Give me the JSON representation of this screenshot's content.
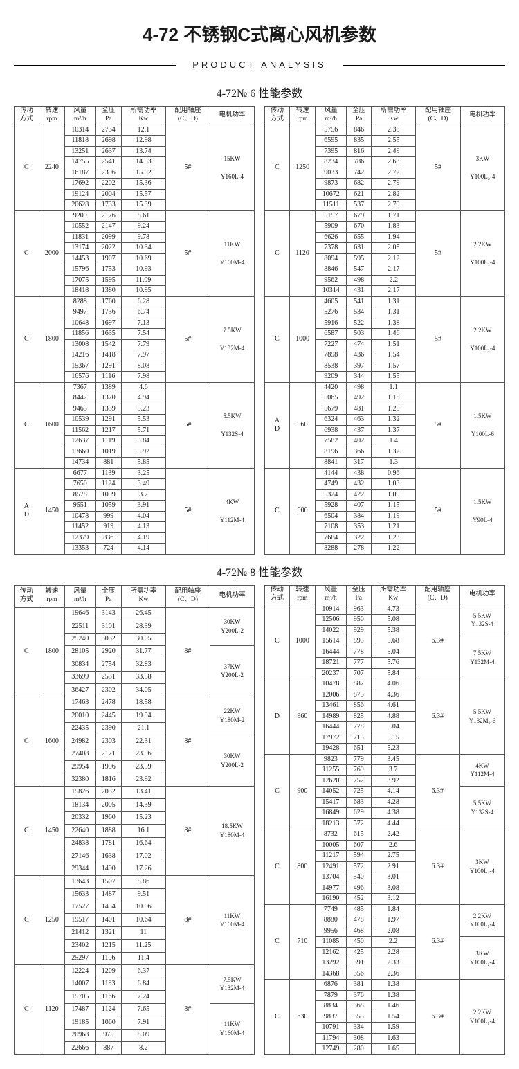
{
  "title": "4-72 不锈钢C式离心风机参数",
  "subtitle": "PRODUCT ANALYSIS",
  "sections": [
    {
      "heading": "4-72№ 6 性能参数"
    },
    {
      "heading": "4-72№ 8 性能参数"
    }
  ],
  "headers": {
    "drive": "传动\n方式",
    "rpm": "转速\nrpm",
    "flow": "风量\nm³/h",
    "press": "全压\nPa",
    "power": "所需功率\nKw",
    "bearing": "配用轴座\n(C、D)",
    "motor": "电机功率"
  },
  "colors": {
    "border": "#555555",
    "text": "#1a1a1a",
    "bg": "#ffffff"
  },
  "no6_left": [
    {
      "drive": "C",
      "rpm": "2240",
      "bearing": "5#",
      "motor": [
        "15KW",
        "Y160L-4"
      ],
      "rows": [
        [
          "10314",
          "2734",
          "12.1"
        ],
        [
          "11818",
          "2698",
          "12.98"
        ],
        [
          "13251",
          "2637",
          "13.74"
        ],
        [
          "14755",
          "2541",
          "14.53"
        ],
        [
          "16187",
          "2396",
          "15.02"
        ],
        [
          "17692",
          "2202",
          "15.36"
        ],
        [
          "19124",
          "2004",
          "15.57"
        ],
        [
          "20628",
          "1733",
          "15.39"
        ]
      ]
    },
    {
      "drive": "C",
      "rpm": "2000",
      "bearing": "5#",
      "motor": [
        "11KW",
        "Y160M-4"
      ],
      "rows": [
        [
          "9209",
          "2176",
          "8.61"
        ],
        [
          "10552",
          "2147",
          "9.24"
        ],
        [
          "11831",
          "2099",
          "9.78"
        ],
        [
          "13174",
          "2022",
          "10.34"
        ],
        [
          "14453",
          "1907",
          "10.69"
        ],
        [
          "15796",
          "1753",
          "10.93"
        ],
        [
          "17075",
          "1595",
          "11.09"
        ],
        [
          "18418",
          "1380",
          "10.95"
        ]
      ]
    },
    {
      "drive": "C",
      "rpm": "1800",
      "bearing": "5#",
      "motor": [
        "7.5KW",
        "Y132M-4"
      ],
      "rows": [
        [
          "8288",
          "1760",
          "6.28"
        ],
        [
          "9497",
          "1736",
          "6.74"
        ],
        [
          "10648",
          "1697",
          "7.13"
        ],
        [
          "11856",
          "1635",
          "7.54"
        ],
        [
          "13008",
          "1542",
          "7.79"
        ],
        [
          "14216",
          "1418",
          "7.97"
        ],
        [
          "15367",
          "1291",
          "8.08"
        ],
        [
          "16576",
          "1116",
          "7.98"
        ]
      ]
    },
    {
      "drive": "C",
      "rpm": "1600",
      "bearing": "5#",
      "motor": [
        "5.5KW",
        "Y132S-4"
      ],
      "rows": [
        [
          "7367",
          "1389",
          "4.6"
        ],
        [
          "8442",
          "1370",
          "4.94"
        ],
        [
          "9465",
          "1339",
          "5.23"
        ],
        [
          "10539",
          "1291",
          "5.53"
        ],
        [
          "11562",
          "1217",
          "5.71"
        ],
        [
          "12637",
          "1119",
          "5.84"
        ],
        [
          "13660",
          "1019",
          "5.92"
        ],
        [
          "14734",
          "881",
          "5.85"
        ]
      ]
    },
    {
      "drive": "A\nD",
      "rpm": "1450",
      "bearing": "5#",
      "motor": [
        "4KW",
        "Y112M-4"
      ],
      "rows": [
        [
          "6677",
          "1139",
          "3.25"
        ],
        [
          "7650",
          "1124",
          "3.49"
        ],
        [
          "8578",
          "1099",
          "3.7"
        ],
        [
          "9551",
          "1059",
          "3.91"
        ],
        [
          "10478",
          "999",
          "4.04"
        ],
        [
          "11452",
          "919",
          "4.13"
        ],
        [
          "12379",
          "836",
          "4.19"
        ],
        [
          "13353",
          "724",
          "4.14"
        ]
      ]
    }
  ],
  "no6_right": [
    {
      "drive": "C",
      "rpm": "1250",
      "bearing": "5#",
      "motor": [
        "3KW",
        "Y100L₂-4"
      ],
      "rows": [
        [
          "5756",
          "846",
          "2.38"
        ],
        [
          "6595",
          "835",
          "2.55"
        ],
        [
          "7395",
          "816",
          "2.49"
        ],
        [
          "8234",
          "786",
          "2.63"
        ],
        [
          "9033",
          "742",
          "2.72"
        ],
        [
          "9873",
          "682",
          "2.79"
        ],
        [
          "10672",
          "621",
          "2.82"
        ],
        [
          "11511",
          "537",
          "2.79"
        ]
      ]
    },
    {
      "drive": "C",
      "rpm": "1120",
      "bearing": "5#",
      "motor": [
        "2.2KW",
        "Y100L₁-4"
      ],
      "rows": [
        [
          "5157",
          "679",
          "1.71"
        ],
        [
          "5909",
          "670",
          "1.83"
        ],
        [
          "6626",
          "655",
          "1.94"
        ],
        [
          "7378",
          "631",
          "2.05"
        ],
        [
          "8094",
          "595",
          "2.12"
        ],
        [
          "8846",
          "547",
          "2.17"
        ],
        [
          "9562",
          "498",
          "2.2"
        ],
        [
          "10314",
          "431",
          "2.17"
        ]
      ]
    },
    {
      "drive": "C",
      "rpm": "1000",
      "bearing": "5#",
      "motor": [
        "2.2KW",
        "Y100L₁-4"
      ],
      "rows": [
        [
          "4605",
          "541",
          "1.31"
        ],
        [
          "5276",
          "534",
          "1.31"
        ],
        [
          "5916",
          "522",
          "1.38"
        ],
        [
          "6587",
          "503",
          "1.46"
        ],
        [
          "7227",
          "474",
          "1.51"
        ],
        [
          "7898",
          "436",
          "1.54"
        ],
        [
          "8538",
          "397",
          "1.57"
        ],
        [
          "9209",
          "344",
          "1.55"
        ]
      ]
    },
    {
      "drive": "A\nD",
      "rpm": "960",
      "bearing": "5#",
      "motor": [
        "1.5KW",
        "Y100L-6"
      ],
      "rows": [
        [
          "4420",
          "498",
          "1.1"
        ],
        [
          "5065",
          "492",
          "1.18"
        ],
        [
          "5679",
          "481",
          "1.25"
        ],
        [
          "6324",
          "463",
          "1.32"
        ],
        [
          "6938",
          "437",
          "1.37"
        ],
        [
          "7582",
          "402",
          "1.4"
        ],
        [
          "8196",
          "366",
          "1.32"
        ],
        [
          "8841",
          "317",
          "1.3"
        ]
      ]
    },
    {
      "drive": "C",
      "rpm": "900",
      "bearing": "5#",
      "motor": [
        "1.5KW",
        "Y90L-4"
      ],
      "rows": [
        [
          "4144",
          "438",
          "0.96"
        ],
        [
          "4749",
          "432",
          "1.03"
        ],
        [
          "5324",
          "422",
          "1.09"
        ],
        [
          "5928",
          "407",
          "1.15"
        ],
        [
          "6504",
          "384",
          "1.19"
        ],
        [
          "7108",
          "353",
          "1.21"
        ],
        [
          "7684",
          "322",
          "1.23"
        ],
        [
          "8288",
          "278",
          "1.22"
        ]
      ]
    }
  ],
  "no8_left": [
    {
      "drive": "C",
      "rpm": "1800",
      "bearing": "8#",
      "motors": [
        [
          "30KW",
          "Y200L-2",
          3
        ],
        [
          "37KW",
          "Y200L-2",
          4
        ]
      ],
      "rows": [
        [
          "19646",
          "3143",
          "26.45"
        ],
        [
          "22511",
          "3101",
          "28.39"
        ],
        [
          "25240",
          "3032",
          "30.05"
        ],
        [
          "28105",
          "2920",
          "31.77"
        ],
        [
          "30834",
          "2754",
          "32.83"
        ],
        [
          "33699",
          "2531",
          "33.58"
        ],
        [
          "36427",
          "2302",
          "34.05"
        ]
      ]
    },
    {
      "drive": "C",
      "rpm": "1600",
      "bearing": "8#",
      "motors": [
        [
          "22KW",
          "Y180M-2",
          3
        ],
        [
          "30KW",
          "Y200L-2",
          4
        ]
      ],
      "rows": [
        [
          "17463",
          "2478",
          "18.58"
        ],
        [
          "20010",
          "2445",
          "19.94"
        ],
        [
          "22435",
          "2390",
          "21.1"
        ],
        [
          "24982",
          "2303",
          "22.31"
        ],
        [
          "27408",
          "2171",
          "23.06"
        ],
        [
          "29954",
          "1996",
          "23.59"
        ],
        [
          "32380",
          "1816",
          "23.92"
        ]
      ]
    },
    {
      "drive": "C",
      "rpm": "1450",
      "bearing": "8#",
      "motors": [
        [
          "18.5KW",
          "Y180M-4",
          7
        ]
      ],
      "rows": [
        [
          "15826",
          "2032",
          "13.41"
        ],
        [
          "18134",
          "2005",
          "14.39"
        ],
        [
          "20332",
          "1960",
          "15.23"
        ],
        [
          "22640",
          "1888",
          "16.1"
        ],
        [
          "24838",
          "1781",
          "16.64"
        ],
        [
          "27146",
          "1638",
          "17.02"
        ],
        [
          "29344",
          "1490",
          "17.26"
        ]
      ]
    },
    {
      "drive": "C",
      "rpm": "1250",
      "bearing": "8#",
      "motors": [
        [
          "11KW",
          "Y160M-4",
          7
        ]
      ],
      "rows": [
        [
          "13643",
          "1507",
          "8.86"
        ],
        [
          "15633",
          "1487",
          "9.51"
        ],
        [
          "17527",
          "1454",
          "10.06"
        ],
        [
          "19517",
          "1401",
          "10.64"
        ],
        [
          "21412",
          "1321",
          "11"
        ],
        [
          "23402",
          "1215",
          "11.25"
        ],
        [
          "25297",
          "1106",
          "11.4"
        ]
      ]
    },
    {
      "drive": "C",
      "rpm": "1120",
      "bearing": "8#",
      "motors": [
        [
          "7.5KW",
          "Y132M-4",
          3
        ],
        [
          "11KW",
          "Y160M-4",
          4
        ]
      ],
      "rows": [
        [
          "12224",
          "1209",
          "6.37"
        ],
        [
          "14007",
          "1193",
          "6.84"
        ],
        [
          "15705",
          "1166",
          "7.24"
        ],
        [
          "17487",
          "1124",
          "7.65"
        ],
        [
          "19185",
          "1060",
          "7.91"
        ],
        [
          "20968",
          "975",
          "8.09"
        ],
        [
          "22666",
          "887",
          "8.2"
        ]
      ]
    }
  ],
  "no8_right": [
    {
      "drive": "C",
      "rpm": "1000",
      "bearing": "6.3#",
      "motors": [
        [
          "5.5KW",
          "Y132S-4",
          3
        ],
        [
          "7.5KW",
          "Y132M-4",
          4
        ]
      ],
      "rows": [
        [
          "10914",
          "963",
          "4.73"
        ],
        [
          "12506",
          "950",
          "5.08"
        ],
        [
          "14022",
          "929",
          "5.38"
        ],
        [
          "15614",
          "895",
          "5.68"
        ],
        [
          "16444",
          "778",
          "5.04"
        ],
        [
          "18721",
          "777",
          "5.76"
        ],
        [
          "20237",
          "707",
          "5.84"
        ]
      ]
    },
    {
      "drive": "D",
      "rpm": "960",
      "bearing": "6.3#",
      "motors": [
        [
          "5.5KW",
          "Y132M₂-6",
          7
        ]
      ],
      "rows": [
        [
          "10478",
          "887",
          "4.06"
        ],
        [
          "12006",
          "875",
          "4.36"
        ],
        [
          "13461",
          "856",
          "4.61"
        ],
        [
          "14989",
          "825",
          "4.88"
        ],
        [
          "16444",
          "778",
          "5.04"
        ],
        [
          "17972",
          "715",
          "5.15"
        ],
        [
          "19428",
          "651",
          "5.23"
        ]
      ]
    },
    {
      "drive": "C",
      "rpm": "900",
      "bearing": "6.3#",
      "motors": [
        [
          "4KW",
          "Y112M-4",
          3
        ],
        [
          "5.5KW",
          "Y132S-4",
          4
        ]
      ],
      "rows": [
        [
          "9823",
          "779",
          "3.45"
        ],
        [
          "11255",
          "769",
          "3.7"
        ],
        [
          "12620",
          "752",
          "3.92"
        ],
        [
          "14052",
          "725",
          "4.14"
        ],
        [
          "15417",
          "683",
          "4.28"
        ],
        [
          "16849",
          "629",
          "4.38"
        ],
        [
          "18213",
          "572",
          "4.44"
        ]
      ]
    },
    {
      "drive": "C",
      "rpm": "800",
      "bearing": "6.3#",
      "motors": [
        [
          "3KW",
          "Y100L₂-4",
          7
        ]
      ],
      "rows": [
        [
          "8732",
          "615",
          "2.42"
        ],
        [
          "10005",
          "607",
          "2.6"
        ],
        [
          "11217",
          "594",
          "2.75"
        ],
        [
          "12491",
          "572",
          "2.91"
        ],
        [
          "13704",
          "540",
          "3.01"
        ],
        [
          "14977",
          "496",
          "3.08"
        ],
        [
          "16190",
          "452",
          "3.12"
        ]
      ]
    },
    {
      "drive": "C",
      "rpm": "710",
      "bearing": "6.3#",
      "motors": [
        [
          "2.2KW",
          "Y100L₁-4",
          3
        ],
        [
          "3KW",
          "Y100L₂-4",
          4
        ]
      ],
      "rows": [
        [
          "7749",
          "485",
          "1.84"
        ],
        [
          "8880",
          "478",
          "1.97"
        ],
        [
          "9956",
          "468",
          "2.08"
        ],
        [
          "11085",
          "450",
          "2.2"
        ],
        [
          "12162",
          "425",
          "2.28"
        ],
        [
          "13292",
          "391",
          "2.33"
        ],
        [
          "14368",
          "356",
          "2.36"
        ]
      ]
    },
    {
      "drive": "C",
      "rpm": "630",
      "bearing": "6.3#",
      "motors": [
        [
          "2.2KW",
          "Y100L₁-4",
          7
        ]
      ],
      "rows": [
        [
          "6876",
          "381",
          "1.38"
        ],
        [
          "7879",
          "376",
          "1.38"
        ],
        [
          "8834",
          "368",
          "1.46"
        ],
        [
          "9837",
          "355",
          "1.54"
        ],
        [
          "10791",
          "334",
          "1.59"
        ],
        [
          "11794",
          "308",
          "1.63"
        ],
        [
          "12749",
          "280",
          "1.65"
        ]
      ]
    }
  ]
}
